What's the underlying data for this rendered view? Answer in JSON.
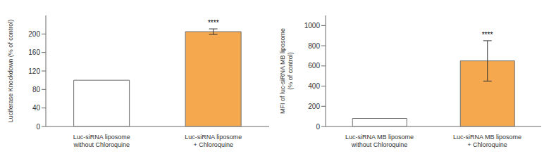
{
  "chart_data": [
    {
      "type": "bar",
      "categories": [
        "Luc-siRNA liposome\nwithout Chloroquine",
        "Luc-siRNA liposome\n+ Chloroquine"
      ],
      "values": [
        100,
        205
      ],
      "errors": [
        0,
        6
      ],
      "colors": [
        "#ffffff",
        "#f5a84e"
      ],
      "ylabel": "Luciferase Knockdown (% of control)",
      "ylim": [
        0,
        240
      ],
      "yticks": [
        0,
        40,
        80,
        120,
        160,
        200
      ],
      "annotations": [
        {
          "category": "Luc-siRNA liposome\n+ Chloroquine",
          "text": "****"
        }
      ]
    },
    {
      "type": "bar",
      "categories": [
        "Luc-siRNA MB liposome\nwithout Chloroquine",
        "Luc-siRNA MB liposome\n+ Chloroquine"
      ],
      "values": [
        80,
        650
      ],
      "errors": [
        0,
        200
      ],
      "colors": [
        "#ffffff",
        "#f5a84e"
      ],
      "ylabel": "MFI of luc-siRNA MB liposome\n(% of control)",
      "ylim": [
        0,
        1100
      ],
      "yticks": [
        0,
        200,
        400,
        600,
        800,
        1000
      ],
      "annotations": [
        {
          "category": "Luc-siRNA MB liposome\n+ Chloroquine",
          "text": "****"
        }
      ]
    }
  ]
}
